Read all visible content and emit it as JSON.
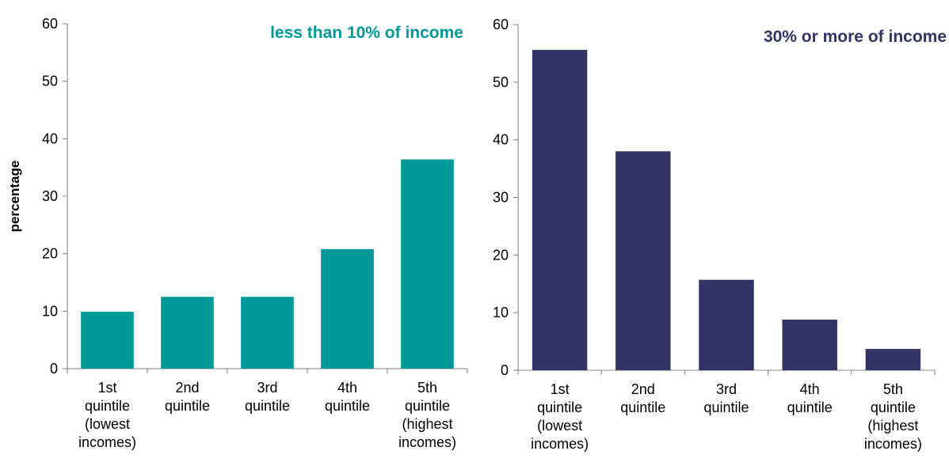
{
  "chart_data": [
    {
      "type": "bar",
      "title": "less than 10% of income",
      "title_color": "#009999",
      "ylabel": "percentage",
      "categories": [
        "1st quintile (lowest incomes)",
        "2nd quintile",
        "3rd quintile",
        "4th quintile",
        "5th quintile (highest incomes)"
      ],
      "values": [
        9.9,
        12.5,
        12.5,
        20.8,
        36.4
      ],
      "color": "#009999",
      "ylim": [
        0,
        60
      ],
      "yticks": [
        0,
        10,
        20,
        30,
        40,
        50,
        60
      ]
    },
    {
      "type": "bar",
      "title": "30% or more of income",
      "title_color": "#333366",
      "categories": [
        "1st quintile (lowest incomes)",
        "2nd quintile",
        "3rd quintile",
        "4th quintile",
        "5th quintile (highest incomes)"
      ],
      "values": [
        55.6,
        38.0,
        15.7,
        8.8,
        3.7
      ],
      "color": "#333366",
      "ylim": [
        0,
        60
      ],
      "yticks": [
        0,
        10,
        20,
        30,
        40,
        50,
        60
      ]
    }
  ]
}
